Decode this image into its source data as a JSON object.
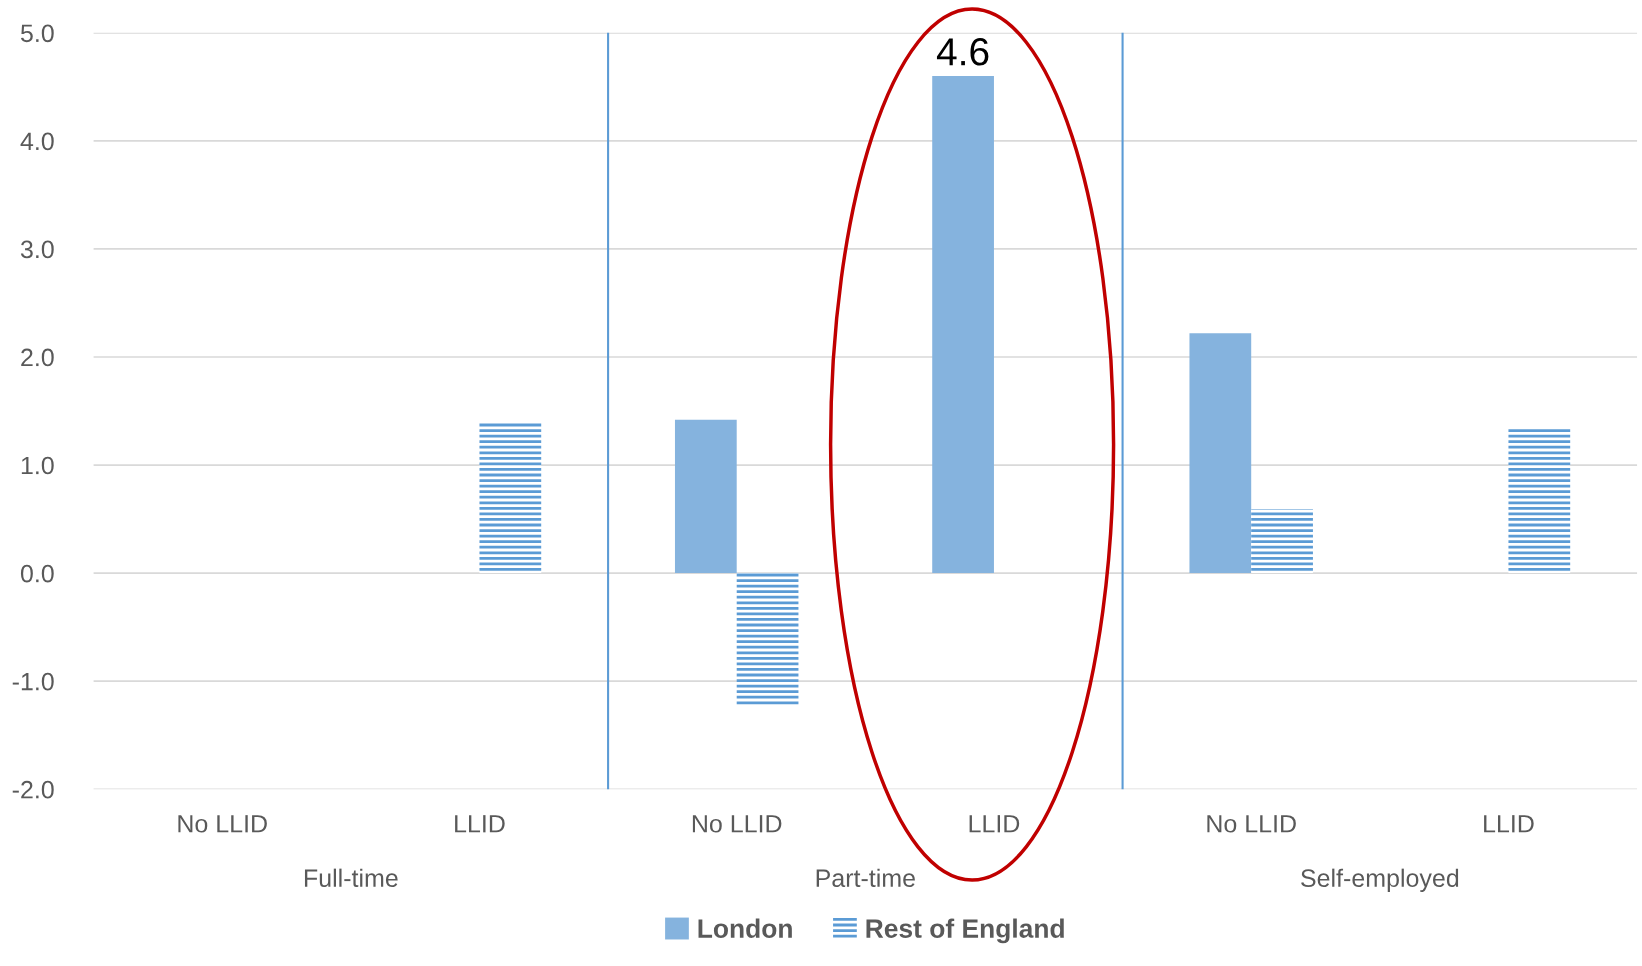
{
  "chart_data": {
    "type": "bar",
    "categories": [
      "No LLID",
      "LLID",
      "No LLID",
      "LLID",
      "No LLID",
      "LLID"
    ],
    "series": [
      {
        "name": "London",
        "color": "#85b3de",
        "values": [
          0,
          0,
          1.42,
          4.6,
          2.22,
          0
        ],
        "value_labels": [
          null,
          null,
          null,
          "4.6",
          null,
          null
        ]
      },
      {
        "name": "Rest of England",
        "color": "#5b9bd5",
        "values": [
          0,
          1.39,
          -1.24,
          0,
          0.59,
          1.34
        ]
      }
    ],
    "annotations": [
      "Full-time",
      "Part-time",
      "Self-employed"
    ],
    "ylim": [
      -2.0,
      5.0
    ],
    "yticks": [
      {
        "value": -2,
        "label": "-2.0"
      },
      {
        "value": -1,
        "label": "-1.0"
      },
      {
        "value": 0,
        "label": "0.0"
      },
      {
        "value": 1,
        "label": "1.0"
      },
      {
        "value": 2,
        "label": "2.0"
      },
      {
        "value": 3,
        "label": "3.0"
      },
      {
        "value": 4,
        "label": "4.0"
      },
      {
        "value": 5,
        "label": "5.0"
      }
    ],
    "grid": "y",
    "legend": "bottom"
  }
}
